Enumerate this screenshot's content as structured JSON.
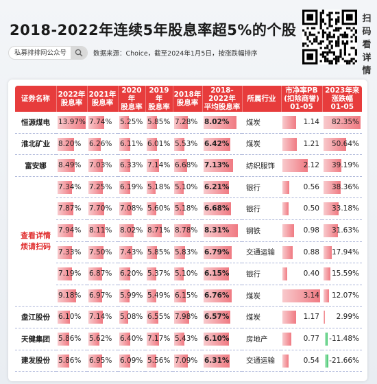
{
  "title": "2018-2022年连续5年股息率超5%的个股",
  "source_pill": "私募排排网公众号",
  "source_note": "数据来源：Choice，截至2024年1月5日，按涨跌幅排序",
  "scan_text": [
    "扫",
    "码",
    "看",
    "详",
    "情"
  ],
  "merged_note": "查看详情\n烦请扫码",
  "colors": {
    "header_bg": "#e73c3c",
    "bar_red": "#f07a82",
    "bar_green": "#3dc56a",
    "note_red": "#e03030"
  },
  "chart_data": {
    "type": "table",
    "columns": [
      "证券名称",
      "2022年\n股息率",
      "2021年\n股息率",
      "2020年\n股息率",
      "2019年\n股息率",
      "2018年\n股息率",
      "2018-\n2022年\n平均股息率",
      "所属行业",
      "市净率PB\n(扣除商誉)\n01-05",
      "2023年来\n涨跌幅\n01-05"
    ],
    "rows": [
      {
        "name": "恒源煤电",
        "y2022": "13.97%",
        "y2021": "7.74%",
        "y2020": "5.25%",
        "y2019": "5.85%",
        "y2018": "7.28%",
        "avg": "8.02%",
        "industry": "煤炭",
        "pb": "1.14",
        "chg": "82.35%"
      },
      {
        "name": "淮北矿业",
        "y2022": "8.20%",
        "y2021": "6.26%",
        "y2020": "6.11%",
        "y2019": "6.01%",
        "y2018": "5.53%",
        "avg": "6.42%",
        "industry": "煤炭",
        "pb": "1.21",
        "chg": "50.64%"
      },
      {
        "name": "富安娜",
        "y2022": "8.49%",
        "y2021": "7.03%",
        "y2020": "6.33%",
        "y2019": "7.14%",
        "y2018": "6.68%",
        "avg": "7.13%",
        "industry": "纺织服饰",
        "pb": "2.12",
        "chg": "39.19%"
      },
      {
        "name": "",
        "y2022": "7.34%",
        "y2021": "7.25%",
        "y2020": "6.19%",
        "y2019": "5.18%",
        "y2018": "5.10%",
        "avg": "6.21%",
        "industry": "银行",
        "pb": "0.56",
        "chg": "38.36%"
      },
      {
        "name": "",
        "y2022": "7.87%",
        "y2021": "7.70%",
        "y2020": "7.08%",
        "y2019": "5.60%",
        "y2018": "5.18%",
        "avg": "6.68%",
        "industry": "银行",
        "pb": "0.50",
        "chg": "33.18%"
      },
      {
        "name": "",
        "y2022": "7.94%",
        "y2021": "8.11%",
        "y2020": "8.02%",
        "y2019": "8.71%",
        "y2018": "8.78%",
        "avg": "8.31%",
        "industry": "钢铁",
        "pb": "0.98",
        "chg": "31.63%"
      },
      {
        "name": "",
        "y2022": "7.33%",
        "y2021": "7.50%",
        "y2020": "7.43%",
        "y2019": "5.85%",
        "y2018": "5.83%",
        "avg": "6.79%",
        "industry": "交通运输",
        "pb": "0.88",
        "chg": "17.94%"
      },
      {
        "name": "",
        "y2022": "7.19%",
        "y2021": "6.87%",
        "y2020": "6.20%",
        "y2019": "5.37%",
        "y2018": "5.10%",
        "avg": "6.15%",
        "industry": "银行",
        "pb": "0.40",
        "chg": "15.59%"
      },
      {
        "name": "",
        "y2022": "9.18%",
        "y2021": "6.97%",
        "y2020": "5.99%",
        "y2019": "5.49%",
        "y2018": "6.15%",
        "avg": "6.76%",
        "industry": "煤炭",
        "pb": "3.14",
        "chg": "12.07%"
      },
      {
        "name": "盘江股份",
        "y2022": "6.10%",
        "y2021": "7.14%",
        "y2020": "5.08%",
        "y2019": "6.55%",
        "y2018": "7.98%",
        "avg": "6.57%",
        "industry": "煤炭",
        "pb": "1.17",
        "chg": "2.99%"
      },
      {
        "name": "天健集团",
        "y2022": "5.86%",
        "y2021": "5.62%",
        "y2020": "6.40%",
        "y2019": "7.17%",
        "y2018": "5.43%",
        "avg": "6.10%",
        "industry": "房地产",
        "pb": "0.77",
        "chg": "-11.48%"
      },
      {
        "name": "建发股份",
        "y2022": "5.86%",
        "y2021": "6.95%",
        "y2020": "6.09%",
        "y2019": "5.56%",
        "y2018": "7.09%",
        "avg": "6.31%",
        "industry": "交通运输",
        "pb": "0.54",
        "chg": "-21.66%"
      }
    ]
  }
}
